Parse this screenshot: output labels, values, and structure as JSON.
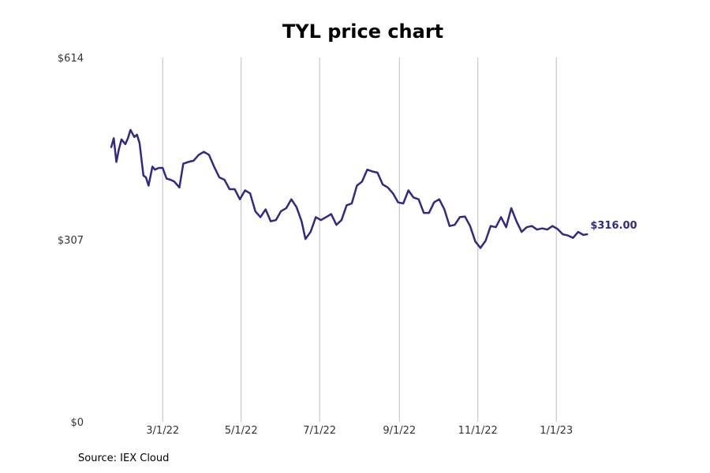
{
  "chart_data": {
    "type": "line",
    "title": "TYL price chart",
    "xlabel": "",
    "ylabel": "",
    "ylim": [
      0,
      614
    ],
    "xlim": [
      "2022-01-01",
      "2023-02-22"
    ],
    "y_ticks": [
      0,
      307,
      614
    ],
    "y_tick_labels": [
      "$0",
      "$307",
      "$614"
    ],
    "x_ticks": [
      "2022-03-01",
      "2022-05-01",
      "2022-07-01",
      "2022-09-01",
      "2022-11-01",
      "2023-01-01"
    ],
    "x_tick_labels": [
      "3/1/22",
      "5/1/22",
      "7/1/22",
      "9/1/22",
      "11/1/22",
      "1/1/23"
    ],
    "grid": "vertical",
    "line_color": "#2e2a86",
    "grid_color": "#bdbdbd",
    "last_value_label": "$316.00",
    "series": [
      {
        "x": [
          "2022-01-20",
          "2022-01-22",
          "2022-01-24",
          "2022-01-26",
          "2022-01-28",
          "2022-01-31",
          "2022-02-02",
          "2022-02-04",
          "2022-02-07",
          "2022-02-09",
          "2022-02-11",
          "2022-02-14",
          "2022-02-16",
          "2022-02-18",
          "2022-02-21",
          "2022-02-23",
          "2022-02-26",
          "2022-03-01",
          "2022-03-04",
          "2022-03-07",
          "2022-03-10",
          "2022-03-14",
          "2022-03-17",
          "2022-03-21",
          "2022-03-25",
          "2022-03-29",
          "2022-04-02",
          "2022-04-06",
          "2022-04-10",
          "2022-04-14",
          "2022-04-18",
          "2022-04-22",
          "2022-04-26",
          "2022-04-30",
          "2022-05-04",
          "2022-05-08",
          "2022-05-12",
          "2022-05-16",
          "2022-05-20",
          "2022-05-24",
          "2022-05-28",
          "2022-06-01",
          "2022-06-05",
          "2022-06-09",
          "2022-06-13",
          "2022-06-17",
          "2022-06-20",
          "2022-06-24",
          "2022-06-28",
          "2022-07-02",
          "2022-07-06",
          "2022-07-10",
          "2022-07-14",
          "2022-07-18",
          "2022-07-22",
          "2022-07-26",
          "2022-07-30",
          "2022-08-03",
          "2022-08-07",
          "2022-08-11",
          "2022-08-15",
          "2022-08-19",
          "2022-08-23",
          "2022-08-27",
          "2022-08-31",
          "2022-09-04",
          "2022-09-08",
          "2022-09-12",
          "2022-09-16",
          "2022-09-20",
          "2022-09-24",
          "2022-09-28",
          "2022-10-02",
          "2022-10-06",
          "2022-10-10",
          "2022-10-14",
          "2022-10-18",
          "2022-10-22",
          "2022-10-26",
          "2022-10-30",
          "2022-11-03",
          "2022-11-07",
          "2022-11-11",
          "2022-11-15",
          "2022-11-19",
          "2022-11-23",
          "2022-11-27",
          "2022-12-01",
          "2022-12-05",
          "2022-12-09",
          "2022-12-13",
          "2022-12-17",
          "2022-12-21",
          "2022-12-25",
          "2022-12-29",
          "2023-01-02",
          "2023-01-06",
          "2023-01-10",
          "2023-01-14",
          "2023-01-18",
          "2023-01-22",
          "2023-01-25"
        ],
        "y": [
          463,
          478,
          438,
          460,
          476,
          468,
          478,
          492,
          480,
          484,
          470,
          415,
          412,
          398,
          430,
          425,
          428,
          428,
          410,
          408,
          405,
          395,
          435,
          438,
          440,
          450,
          455,
          450,
          430,
          412,
          408,
          392,
          392,
          375,
          390,
          385,
          355,
          345,
          358,
          338,
          340,
          355,
          360,
          375,
          362,
          338,
          308,
          320,
          345,
          340,
          345,
          350,
          332,
          340,
          365,
          368,
          398,
          405,
          425,
          422,
          420,
          400,
          395,
          385,
          370,
          368,
          390,
          378,
          375,
          352,
          352,
          370,
          375,
          358,
          330,
          332,
          345,
          346,
          330,
          304,
          293,
          305,
          330,
          328,
          345,
          328,
          360,
          338,
          320,
          328,
          330,
          324,
          326,
          324,
          330,
          325,
          316,
          314,
          310,
          320,
          315,
          316
        ]
      }
    ]
  }
}
